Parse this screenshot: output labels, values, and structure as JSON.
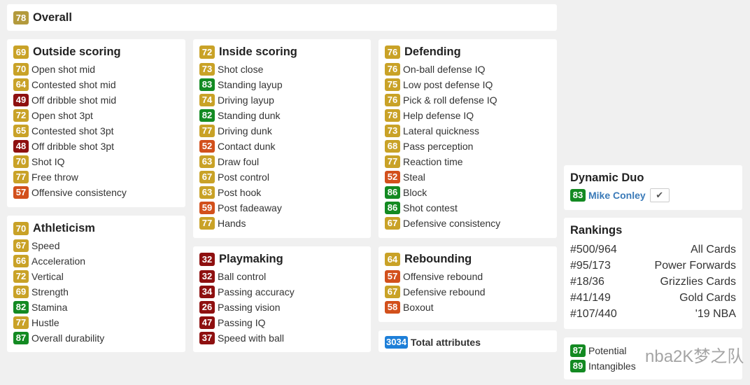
{
  "colors": {
    "red": "#8e1010",
    "orange": "#d2501c",
    "gold": "#c9a227",
    "green": "#138a22",
    "blue": "#1e7fd8",
    "overall": "#b39a3c"
  },
  "overall": {
    "value": "78",
    "label": "Overall"
  },
  "sections": [
    {
      "id": "outside",
      "value": "69",
      "label": "Outside scoring",
      "items": [
        [
          "70",
          "Open shot mid"
        ],
        [
          "64",
          "Contested shot mid"
        ],
        [
          "49",
          "Off dribble shot mid"
        ],
        [
          "72",
          "Open shot 3pt"
        ],
        [
          "65",
          "Contested shot 3pt"
        ],
        [
          "48",
          "Off dribble shot 3pt"
        ],
        [
          "70",
          "Shot IQ"
        ],
        [
          "77",
          "Free throw"
        ],
        [
          "57",
          "Offensive consistency"
        ]
      ]
    },
    {
      "id": "athleticism",
      "value": "70",
      "label": "Athleticism",
      "items": [
        [
          "67",
          "Speed"
        ],
        [
          "66",
          "Acceleration"
        ],
        [
          "72",
          "Vertical"
        ],
        [
          "69",
          "Strength"
        ],
        [
          "82",
          "Stamina"
        ],
        [
          "77",
          "Hustle"
        ],
        [
          "87",
          "Overall durability"
        ]
      ]
    },
    {
      "id": "inside",
      "value": "72",
      "label": "Inside scoring",
      "items": [
        [
          "73",
          "Shot close"
        ],
        [
          "83",
          "Standing layup"
        ],
        [
          "74",
          "Driving layup"
        ],
        [
          "82",
          "Standing dunk"
        ],
        [
          "77",
          "Driving dunk"
        ],
        [
          "52",
          "Contact dunk"
        ],
        [
          "63",
          "Draw foul"
        ],
        [
          "67",
          "Post control"
        ],
        [
          "63",
          "Post hook"
        ],
        [
          "59",
          "Post fadeaway"
        ],
        [
          "77",
          "Hands"
        ]
      ]
    },
    {
      "id": "playmaking",
      "value": "32",
      "label": "Playmaking",
      "items": [
        [
          "32",
          "Ball control"
        ],
        [
          "34",
          "Passing accuracy"
        ],
        [
          "26",
          "Passing vision"
        ],
        [
          "47",
          "Passing IQ"
        ],
        [
          "37",
          "Speed with ball"
        ]
      ]
    },
    {
      "id": "defending",
      "value": "76",
      "label": "Defending",
      "items": [
        [
          "76",
          "On-ball defense IQ"
        ],
        [
          "75",
          "Low post defense IQ"
        ],
        [
          "76",
          "Pick & roll defense IQ"
        ],
        [
          "78",
          "Help defense IQ"
        ],
        [
          "73",
          "Lateral quickness"
        ],
        [
          "68",
          "Pass perception"
        ],
        [
          "77",
          "Reaction time"
        ],
        [
          "52",
          "Steal"
        ],
        [
          "86",
          "Block"
        ],
        [
          "86",
          "Shot contest"
        ],
        [
          "67",
          "Defensive consistency"
        ]
      ]
    },
    {
      "id": "rebounding",
      "value": "64",
      "label": "Rebounding",
      "items": [
        [
          "57",
          "Offensive rebound"
        ],
        [
          "67",
          "Defensive rebound"
        ],
        [
          "58",
          "Boxout"
        ]
      ]
    }
  ],
  "total": {
    "value": "3034",
    "label": "Total attributes"
  },
  "duo": {
    "title": "Dynamic Duo",
    "value": "83",
    "name": "Mike Conley",
    "check": "✔"
  },
  "rankings": {
    "title": "Rankings",
    "items": [
      [
        "#500/964",
        "All Cards"
      ],
      [
        "#95/173",
        "Power Forwards"
      ],
      [
        "#18/36",
        "Grizzlies Cards"
      ],
      [
        "#41/149",
        "Gold Cards"
      ],
      [
        "#107/440",
        "'19 NBA"
      ]
    ]
  },
  "extra": [
    [
      "87",
      "Potential"
    ],
    [
      "89",
      "Intangibles"
    ]
  ],
  "watermark": "nba2K梦之队"
}
